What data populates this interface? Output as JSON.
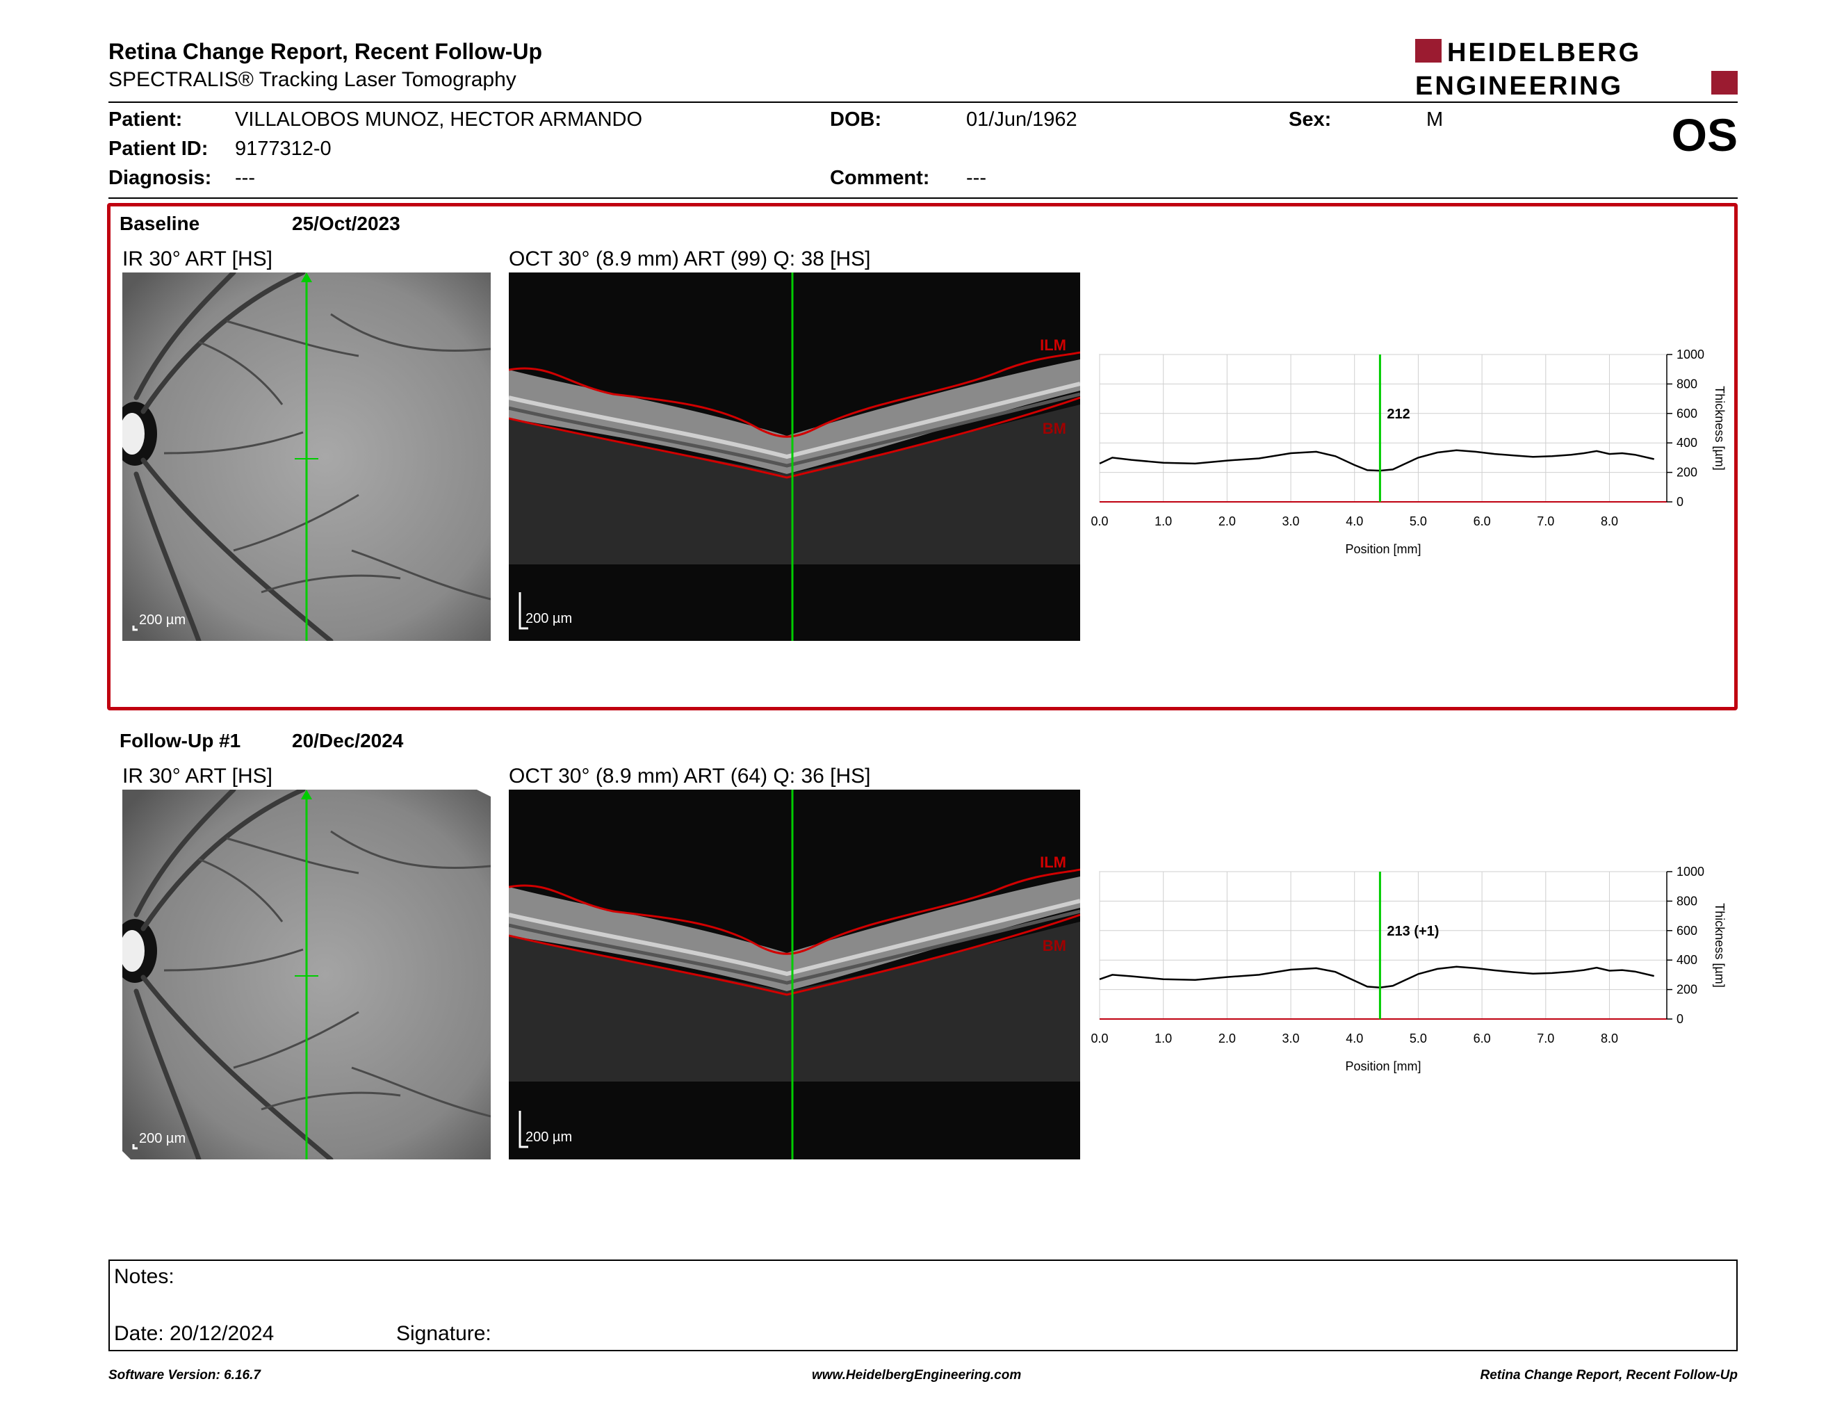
{
  "header": {
    "title": "Retina Change Report, Recent Follow-Up",
    "subtitle": "SPECTRALIS® Tracking Laser Tomography",
    "brand_line1": "HEIDELBERG",
    "brand_line2": "ENGINEERING",
    "eye": "OS"
  },
  "patient": {
    "patient_label": "Patient:",
    "patient_value": "VILLALOBOS MUNOZ, HECTOR ARMANDO",
    "id_label": "Patient ID:",
    "id_value": "9177312-0",
    "diagnosis_label": "Diagnosis:",
    "diagnosis_value": "---",
    "dob_label": "DOB:",
    "dob_value": "01/Jun/1962",
    "comment_label": "Comment:",
    "comment_value": "---",
    "sex_label": "Sex:",
    "sex_value": "M"
  },
  "baseline": {
    "label": "Baseline",
    "date": "25/Oct/2023",
    "ir_label": "IR 30° ART [HS]",
    "oct_label": "OCT 30° (8.9 mm) ART (99) Q: 38 [HS]",
    "scale_label": "200 µm",
    "ilm_label": "ILM",
    "bm_label": "BM",
    "marker_value": "212"
  },
  "followup": {
    "label": "Follow-Up #1",
    "date": "20/Dec/2024",
    "ir_label": "IR 30° ART [HS]",
    "oct_label": "OCT 30° (8.9 mm) ART (64) Q: 36 [HS]",
    "scale_label": "200 µm",
    "ilm_label": "ILM",
    "bm_label": "BM",
    "marker_value": "213 (+1)"
  },
  "notes": {
    "notes_label": "Notes:",
    "date_label": "Date: 20/12/2024",
    "signature_label": "Signature:"
  },
  "footer": {
    "software": "Software Version: 6.16.7",
    "website": "www.HeidelbergEngineering.com",
    "report": "Retina Change Report, Recent Follow-Up"
  },
  "colors": {
    "accent_red": "#c00010",
    "marker_green": "#00cc00",
    "brand_red": "#9b1b30"
  },
  "chart_data": [
    {
      "type": "line",
      "title": "",
      "xlabel": "Position [mm]",
      "ylabel": "Thickness [µm]",
      "xlim": [
        0,
        8.9
      ],
      "ylim": [
        0,
        1000
      ],
      "x_ticks": [
        "0.0",
        "1.0",
        "2.0",
        "3.0",
        "4.0",
        "5.0",
        "6.0",
        "7.0",
        "8.0"
      ],
      "y_ticks": [
        "0",
        "200",
        "400",
        "600",
        "800",
        "1000"
      ],
      "marker_x": 4.4,
      "marker_label": "212",
      "x": [
        0.0,
        0.2,
        0.5,
        1.0,
        1.5,
        2.0,
        2.5,
        3.0,
        3.4,
        3.7,
        4.0,
        4.2,
        4.4,
        4.6,
        4.8,
        5.0,
        5.3,
        5.6,
        5.9,
        6.2,
        6.5,
        6.8,
        7.1,
        7.4,
        7.6,
        7.8,
        8.0,
        8.2,
        8.4,
        8.7
      ],
      "y": [
        260,
        300,
        285,
        265,
        260,
        280,
        295,
        330,
        340,
        310,
        250,
        215,
        212,
        220,
        260,
        300,
        335,
        350,
        340,
        325,
        315,
        305,
        310,
        320,
        330,
        345,
        325,
        330,
        320,
        290
      ]
    },
    {
      "type": "line",
      "title": "",
      "xlabel": "Position [mm]",
      "ylabel": "Thickness [µm]",
      "xlim": [
        0,
        8.9
      ],
      "ylim": [
        0,
        1000
      ],
      "x_ticks": [
        "0.0",
        "1.0",
        "2.0",
        "3.0",
        "4.0",
        "5.0",
        "6.0",
        "7.0",
        "8.0"
      ],
      "y_ticks": [
        "0",
        "200",
        "400",
        "600",
        "800",
        "1000"
      ],
      "marker_x": 4.4,
      "marker_label": "213 (+1)",
      "x": [
        0.0,
        0.2,
        0.5,
        1.0,
        1.5,
        2.0,
        2.5,
        3.0,
        3.4,
        3.7,
        4.0,
        4.2,
        4.4,
        4.6,
        4.8,
        5.0,
        5.3,
        5.6,
        5.9,
        6.2,
        6.5,
        6.8,
        7.1,
        7.4,
        7.6,
        7.8,
        8.0,
        8.2,
        8.4,
        8.7
      ],
      "y": [
        270,
        300,
        290,
        270,
        265,
        285,
        300,
        335,
        345,
        320,
        260,
        220,
        213,
        225,
        265,
        305,
        340,
        355,
        345,
        330,
        318,
        308,
        312,
        322,
        332,
        348,
        328,
        332,
        322,
        292
      ]
    }
  ]
}
